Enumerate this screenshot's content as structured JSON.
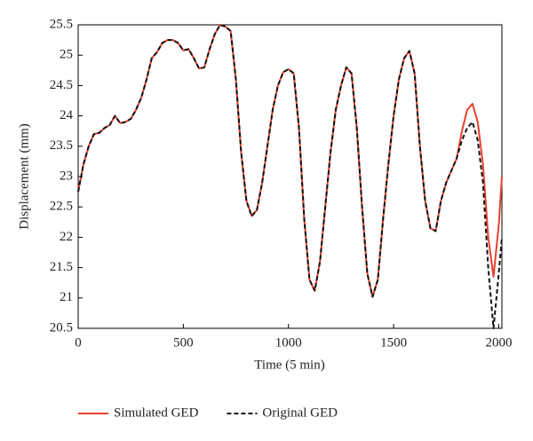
{
  "chart_data": {
    "type": "line",
    "xlabel": "Time (5 min)",
    "ylabel": "Displacement (mm)",
    "x": [
      0,
      25,
      50,
      75,
      100,
      125,
      150,
      175,
      200,
      225,
      250,
      275,
      300,
      325,
      350,
      375,
      400,
      425,
      450,
      475,
      500,
      525,
      550,
      575,
      600,
      625,
      650,
      675,
      700,
      725,
      750,
      775,
      800,
      825,
      850,
      875,
      900,
      925,
      950,
      975,
      1000,
      1025,
      1050,
      1075,
      1100,
      1125,
      1150,
      1175,
      1200,
      1225,
      1250,
      1275,
      1300,
      1325,
      1350,
      1375,
      1400,
      1425,
      1450,
      1475,
      1500,
      1525,
      1550,
      1575,
      1600,
      1625,
      1650,
      1675,
      1700,
      1725,
      1750,
      1775,
      1800,
      1825,
      1850,
      1875,
      1900,
      1925,
      1950,
      1975,
      2000,
      2015
    ],
    "series": [
      {
        "name": "Simulated GED",
        "color": "#e8412f",
        "line_style": "solid",
        "values": [
          22.75,
          23.2,
          23.5,
          23.7,
          23.72,
          23.8,
          23.85,
          24.0,
          23.88,
          23.9,
          23.95,
          24.1,
          24.3,
          24.6,
          24.95,
          25.05,
          25.2,
          25.25,
          25.25,
          25.2,
          25.08,
          25.1,
          24.95,
          24.78,
          24.8,
          25.1,
          25.35,
          25.5,
          25.47,
          25.4,
          24.6,
          23.4,
          22.6,
          22.35,
          22.45,
          22.9,
          23.5,
          24.1,
          24.5,
          24.72,
          24.77,
          24.7,
          23.8,
          22.3,
          21.3,
          21.12,
          21.6,
          22.5,
          23.4,
          24.1,
          24.5,
          24.8,
          24.7,
          23.8,
          22.5,
          21.4,
          21.02,
          21.3,
          22.3,
          23.2,
          24.0,
          24.6,
          24.95,
          25.07,
          24.7,
          23.5,
          22.6,
          22.15,
          22.1,
          22.6,
          22.9,
          23.1,
          23.3,
          23.75,
          24.1,
          24.2,
          23.9,
          23.2,
          22.0,
          21.35,
          22.2,
          23.0
        ]
      },
      {
        "name": "Original GED",
        "color": "#111111",
        "line_style": "dashed",
        "values": [
          22.75,
          23.2,
          23.5,
          23.7,
          23.72,
          23.8,
          23.85,
          24.0,
          23.88,
          23.9,
          23.95,
          24.1,
          24.3,
          24.6,
          24.95,
          25.05,
          25.2,
          25.25,
          25.25,
          25.2,
          25.08,
          25.1,
          24.95,
          24.78,
          24.8,
          25.1,
          25.35,
          25.5,
          25.47,
          25.4,
          24.6,
          23.4,
          22.6,
          22.35,
          22.45,
          22.9,
          23.5,
          24.1,
          24.5,
          24.72,
          24.77,
          24.7,
          23.8,
          22.3,
          21.3,
          21.12,
          21.6,
          22.5,
          23.4,
          24.1,
          24.5,
          24.8,
          24.7,
          23.8,
          22.5,
          21.4,
          21.02,
          21.3,
          22.3,
          23.2,
          24.0,
          24.6,
          24.95,
          25.07,
          24.7,
          23.5,
          22.6,
          22.15,
          22.1,
          22.6,
          22.9,
          23.1,
          23.3,
          23.6,
          23.8,
          23.9,
          23.6,
          22.9,
          21.5,
          20.5,
          21.4,
          22.0
        ]
      }
    ],
    "xlim": [
      0,
      2015
    ],
    "xticks": [
      0,
      500,
      1000,
      1500,
      2000
    ],
    "ylim": [
      20.5,
      25.5
    ],
    "yticks": [
      20.5,
      21,
      21.5,
      22,
      22.5,
      23,
      23.5,
      24,
      24.5,
      25,
      25.5
    ],
    "grid": false,
    "legend": "bottom"
  }
}
